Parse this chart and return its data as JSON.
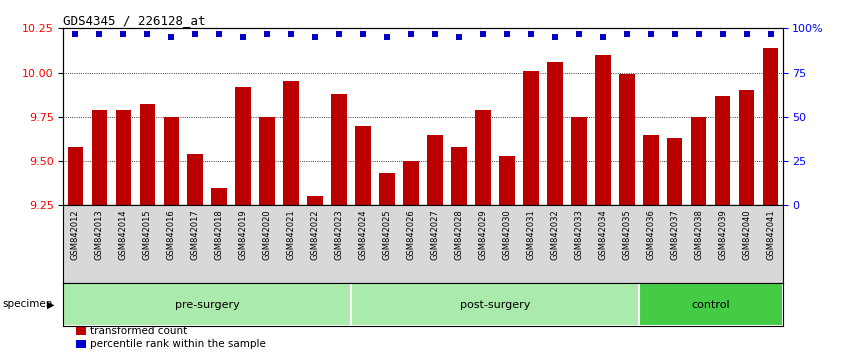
{
  "title": "GDS4345 / 226128_at",
  "categories": [
    "GSM842012",
    "GSM842013",
    "GSM842014",
    "GSM842015",
    "GSM842016",
    "GSM842017",
    "GSM842018",
    "GSM842019",
    "GSM842020",
    "GSM842021",
    "GSM842022",
    "GSM842023",
    "GSM842024",
    "GSM842025",
    "GSM842026",
    "GSM842027",
    "GSM842028",
    "GSM842029",
    "GSM842030",
    "GSM842031",
    "GSM842032",
    "GSM842033",
    "GSM842034",
    "GSM842035",
    "GSM842036",
    "GSM842037",
    "GSM842038",
    "GSM842039",
    "GSM842040",
    "GSM842041"
  ],
  "bar_values": [
    9.58,
    9.79,
    9.79,
    9.82,
    9.75,
    9.54,
    9.35,
    9.92,
    9.75,
    9.95,
    9.3,
    9.88,
    9.7,
    9.43,
    9.5,
    9.65,
    9.58,
    9.79,
    9.53,
    10.01,
    10.06,
    9.75,
    10.1,
    9.99,
    9.65,
    9.63,
    9.75,
    9.87,
    9.9,
    10.14
  ],
  "percentile_values": [
    97,
    97,
    97,
    97,
    95,
    97,
    97,
    95,
    97,
    97,
    95,
    97,
    97,
    95,
    97,
    97,
    95,
    97,
    97,
    97,
    95,
    97,
    95,
    97,
    97,
    97,
    97,
    97,
    97,
    97
  ],
  "groups": [
    {
      "label": "pre-surgery",
      "start": 0,
      "end": 11,
      "color": "#AAEAAA"
    },
    {
      "label": "post-surgery",
      "start": 12,
      "end": 23,
      "color": "#AAEAAA"
    },
    {
      "label": "control",
      "start": 24,
      "end": 29,
      "color": "#44CC44"
    }
  ],
  "bar_color": "#BB0000",
  "dot_color": "#0000CC",
  "ylim_left": [
    9.25,
    10.25
  ],
  "ylim_right": [
    0,
    100
  ],
  "yticks_left": [
    9.25,
    9.5,
    9.75,
    10.0,
    10.25
  ],
  "yticks_right": [
    0,
    25,
    50,
    75,
    100
  ],
  "ytick_labels_right": [
    "0",
    "25",
    "50",
    "75",
    "100%"
  ],
  "grid_values": [
    9.5,
    9.75,
    10.0
  ],
  "plot_bg": "#FFFFFF",
  "fig_bg": "#FFFFFF",
  "legend_items": [
    {
      "label": "transformed count",
      "color": "#BB0000"
    },
    {
      "label": "percentile rank within the sample",
      "color": "#0000CC"
    }
  ]
}
